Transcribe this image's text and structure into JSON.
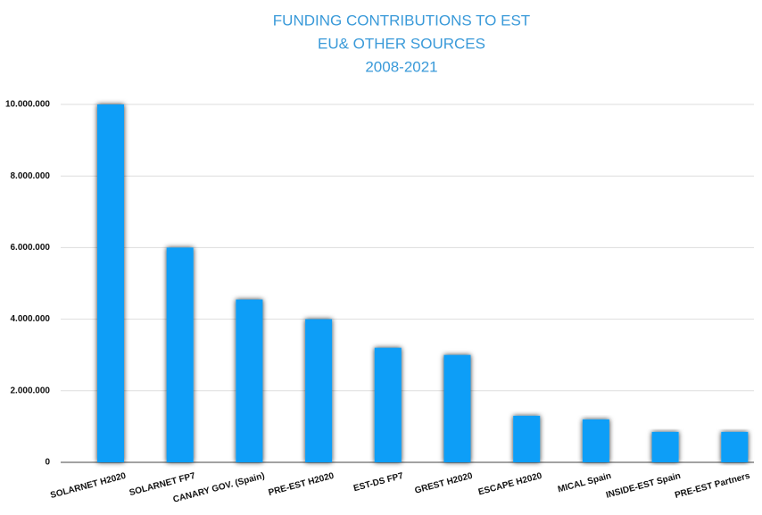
{
  "chart_data": {
    "type": "bar",
    "title_lines": [
      "FUNDING CONTRIBUTIONS TO EST",
      "EU& OTHER SOURCES",
      "2008-2021"
    ],
    "categories": [
      "SOLARNET H2020",
      "SOLARNET FP7",
      "CANARY GOV. (Spain)",
      "PRE-EST H2020",
      "EST-DS FP7",
      "GREST H2020",
      "ESCAPE H2020",
      "MICAL Spain",
      "INSIDE-EST Spain",
      "PRE-EST Partners"
    ],
    "values": [
      10000000,
      6000000,
      4550000,
      4000000,
      3200000,
      3000000,
      1300000,
      1200000,
      850000,
      850000
    ],
    "color": "#0a9ef7",
    "ylim": [
      0,
      10000000
    ],
    "yticks": [
      0,
      {
        "value": 2000000,
        "label": "2.000.000"
      },
      {
        "value": 4000000,
        "label": "4.000.000"
      },
      {
        "value": 6000000,
        "label": "6.000.000"
      },
      {
        "value": 8000000,
        "label": "8.000.000"
      },
      {
        "value": 10000000,
        "label": "10.000.000"
      }
    ],
    "grid": true
  }
}
